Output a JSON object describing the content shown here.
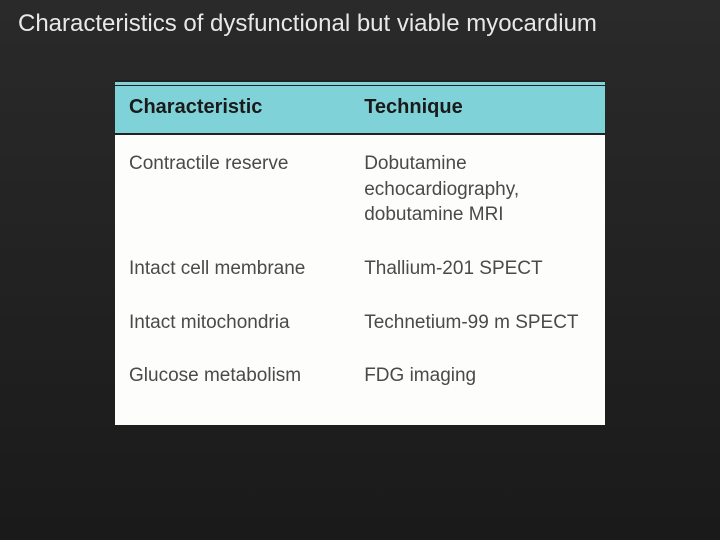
{
  "slide": {
    "title": "Characteristics of dysfunctional but viable myocardium"
  },
  "table": {
    "type": "table",
    "header_bg": "#7fd3d8",
    "body_bg": "#fdfdfb",
    "border_color": "#222222",
    "header_fontsize": 20,
    "body_fontsize": 19,
    "text_color": "#4a4a4a",
    "columns": [
      {
        "label": "Characteristic",
        "width_pct": 48
      },
      {
        "label": "Technique",
        "width_pct": 52
      }
    ],
    "rows": [
      {
        "c0": "Contractile reserve",
        "c1": "Dobutamine echocardiography, dobutamine MRI"
      },
      {
        "c0": "Intact cell membrane",
        "c1": "Thallium-201 SPECT"
      },
      {
        "c0": "Intact mitochondria",
        "c1": "Technetium-99 m SPECT"
      },
      {
        "c0": "Glucose metabolism",
        "c1": "FDG imaging"
      }
    ]
  },
  "background": {
    "gradient_top": "#2a2a2a",
    "gradient_bottom": "#1a1a1a"
  }
}
